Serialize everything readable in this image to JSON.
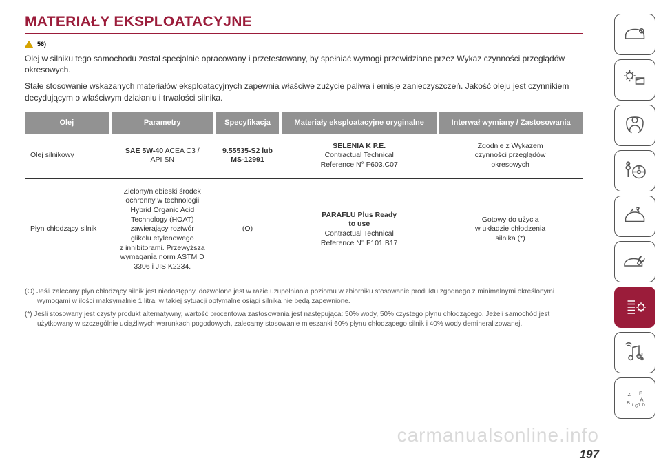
{
  "title": "MATERIAŁY EKSPLOATACYJNE",
  "warn_ref": "56)",
  "para1": "Olej w silniku tego samochodu został specjalnie opracowany i przetestowany, by spełniać wymogi przewidziane przez Wykaz czynności przeglądów okresowych.",
  "para2": "Stałe stosowanie wskazanych materiałów eksploatacyjnych zapewnia właściwe zużycie paliwa i emisje zanieczyszczeń. Jakość oleju jest czynnikiem decydującym o właściwym działaniu i trwałości silnika.",
  "table": {
    "headers": [
      "Olej",
      "Parametry",
      "Specyfikacja",
      "Materiały eksploatacyjne oryginalne",
      "Interwał wymiany / Zastosowania"
    ],
    "rows": [
      {
        "c0": "Olej silnikowy",
        "c1": "<b>SAE 5W-40</b> ACEA C3 /<br>API SN",
        "c2": "<b>9.55535-S2 lub<br>MS-12991</b>",
        "c3": "<b>SELENIA K P.E.</b><br>Contractual Technical<br>Reference N° F603.C07",
        "c4": "Zgodnie z Wykazem<br>czynności przeglądów<br>okresowych"
      },
      {
        "c0": "Płyn chłodzący silnik",
        "c1": "Zielony/niebieski środek<br>ochronny w technologii<br>Hybrid Organic Acid<br>Technology (HOAT)<br>zawierający roztwór<br>glikolu etylenowego<br>z inhibitorami. Przewyższa<br>wymagania norm ASTM D<br>3306 i JIS K2234.",
        "c2": "(O)",
        "c3": "<b>PARAFLU Plus Ready<br>to use</b><br>Contractual Technical<br>Reference N° F101.B17",
        "c4": "Gotowy do użycia<br>w układzie chłodzenia<br>silnika (*)"
      }
    ]
  },
  "note_o": "(O) Jeśli zalecany płyn chłodzący silnik jest niedostępny, dozwolone jest w razie uzupełniania poziomu w zbiorniku stosowanie produktu zgodnego z minimalnymi określonymi wymogami w ilości maksymalnie 1 litra; w takiej sytuacji optymalne osiągi silnika nie będą zapewnione.",
  "note_star": "(*) Jeśli stosowany jest czysty produkt alternatywny, wartość procentowa zastosowania jest następująca: 50% wody, 50% czystego płynu chłodzącego. Jeżeli samochód jest użytkowany w szczególnie uciążliwych warunkach pogodowych, zalecamy stosowanie mieszanki 60% płynu chłodzącego silnik i 40% wody demineralizowanej.",
  "page_number": "197",
  "watermark": "carmanualsonline.info",
  "colors": {
    "brand": "#9b1c3a",
    "header_bg": "#929292",
    "text": "#333333",
    "icon": "#555555"
  },
  "side_tabs": [
    {
      "name": "dashboard-icon",
      "active": false
    },
    {
      "name": "display-icon",
      "active": false
    },
    {
      "name": "safety-icon",
      "active": false
    },
    {
      "name": "start-drive-icon",
      "active": false
    },
    {
      "name": "warning-icon",
      "active": false
    },
    {
      "name": "service-icon",
      "active": false
    },
    {
      "name": "techdata-icon",
      "active": true
    },
    {
      "name": "multimedia-icon",
      "active": false
    },
    {
      "name": "index-icon",
      "active": false
    }
  ]
}
